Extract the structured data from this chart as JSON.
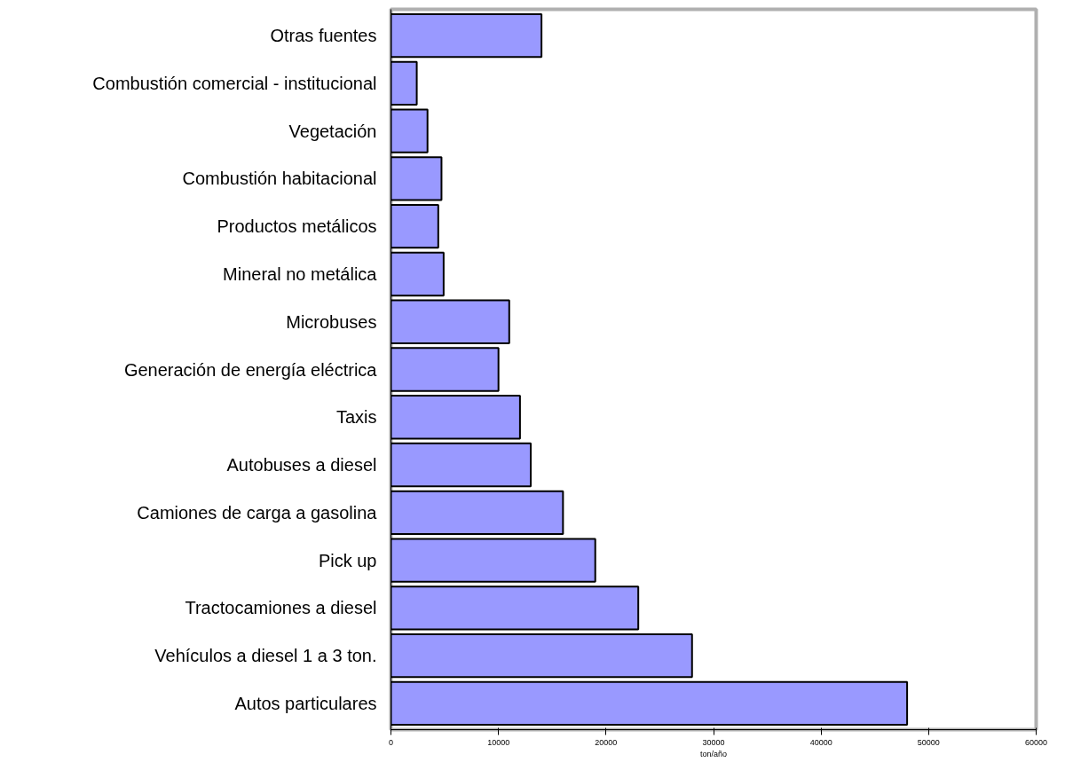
{
  "chart_data": {
    "type": "bar",
    "orientation": "horizontal",
    "xlabel": "ton/año",
    "categories": [
      "Otras fuentes",
      "Combustión comercial - institucional",
      "Vegetación",
      "Combustión habitacional",
      "Productos metálicos",
      "Mineral no metálica",
      "Microbuses",
      "Generación de energía eléctrica",
      "Taxis",
      "Autobuses a diesel",
      "Camiones de carga a gasolina",
      "Pick up",
      "Tractocamiones a diesel",
      "Vehículos a diesel 1 a 3 ton.",
      "Autos particulares"
    ],
    "values": [
      14000,
      2400,
      3400,
      4700,
      4400,
      4900,
      11000,
      10000,
      12000,
      13000,
      16000,
      19000,
      23000,
      28000,
      48000
    ],
    "color": "#9999ff",
    "xlim": [
      0,
      60000
    ],
    "xticks": [
      0,
      10000,
      20000,
      30000,
      40000,
      50000,
      60000
    ],
    "grid": false
  }
}
